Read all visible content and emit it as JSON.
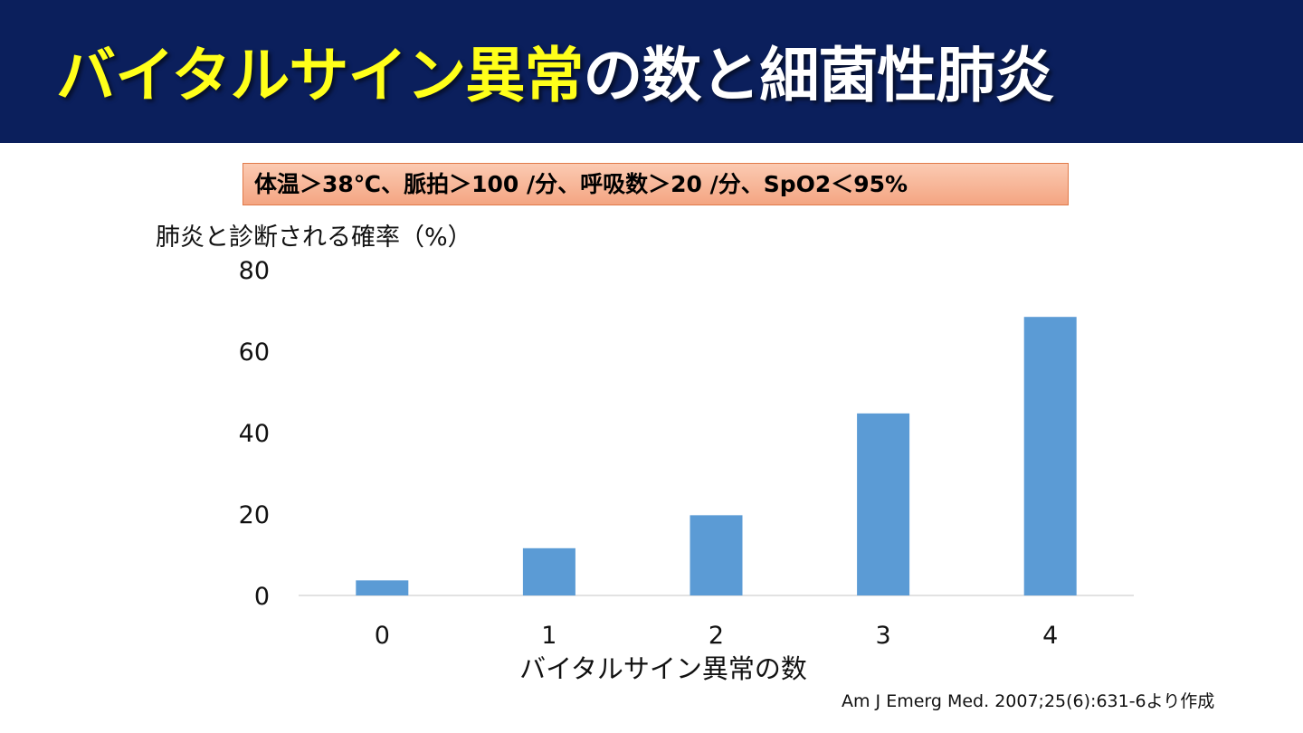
{
  "slide": {
    "title_highlight": "バイタルサイン異常",
    "title_rest": "の数と細菌性肺炎",
    "criteria": "体温＞38℃、脈拍＞100 /分、呼吸数＞20 /分、SpO2＜95%",
    "citation": "Am J Emerg Med. 2007;25(6):631-6より作成"
  },
  "colors": {
    "title_bar": "#0b1f5c",
    "title_highlight": "#ffff1a",
    "bar": "#5b9bd5",
    "criteria_fill": "#f4a582"
  },
  "chart_data": {
    "type": "bar",
    "categories": [
      "0",
      "1",
      "2",
      "3",
      "4"
    ],
    "values": [
      3.7,
      11.6,
      19.7,
      44.7,
      68.4
    ],
    "ylabel": "肺炎と診断される確率（%）",
    "xlabel": "バイタルサイン異常の数",
    "ylim": [
      0,
      80
    ],
    "yticks": [
      "0",
      "20",
      "40",
      "60",
      "80"
    ],
    "grid": false,
    "legend": "none"
  }
}
